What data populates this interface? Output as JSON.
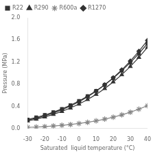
{
  "chart_data": {
    "type": "line",
    "xlabel": "Saturated  liquid temperature (°C)",
    "ylabel": "Pressure (MPa)",
    "x": [
      -30,
      -25,
      -20,
      -15,
      -10,
      -5,
      0,
      5,
      10,
      15,
      20,
      25,
      30,
      35,
      40
    ],
    "series": [
      {
        "name": "R22",
        "color": "#333333",
        "marker": "square",
        "values": [
          0.163,
          0.201,
          0.245,
          0.296,
          0.354,
          0.421,
          0.498,
          0.584,
          0.681,
          0.789,
          0.91,
          1.044,
          1.191,
          1.354,
          1.534
        ]
      },
      {
        "name": "R290",
        "color": "#333333",
        "marker": "triangle",
        "values": [
          0.137,
          0.17,
          0.209,
          0.255,
          0.309,
          0.371,
          0.442,
          0.524,
          0.617,
          0.722,
          0.841,
          0.973,
          1.121,
          1.285,
          1.467
        ]
      },
      {
        "name": "R600a",
        "color": "#888888",
        "marker": "star",
        "values": [
          0.022,
          0.028,
          0.036,
          0.046,
          0.058,
          0.073,
          0.091,
          0.113,
          0.139,
          0.17,
          0.206,
          0.247,
          0.295,
          0.35,
          0.413
        ]
      },
      {
        "name": "R1270",
        "color": "#333333",
        "marker": "diamond",
        "values": [
          0.152,
          0.188,
          0.231,
          0.281,
          0.339,
          0.406,
          0.484,
          0.573,
          0.674,
          0.789,
          0.917,
          1.06,
          1.219,
          1.396,
          1.591
        ]
      }
    ],
    "xlim": [
      -30,
      40
    ],
    "ylim": [
      0.0,
      2.0
    ],
    "xticks": [
      -30,
      -20,
      -10,
      0,
      10,
      20,
      30,
      40
    ],
    "yticks": [
      {
        "value": 0.0,
        "label": "0.0"
      },
      0.4,
      0.8,
      1.2,
      1.6,
      {
        "value": 2.0,
        "label": "2.0"
      }
    ],
    "grid": false,
    "legend": "upper left"
  }
}
